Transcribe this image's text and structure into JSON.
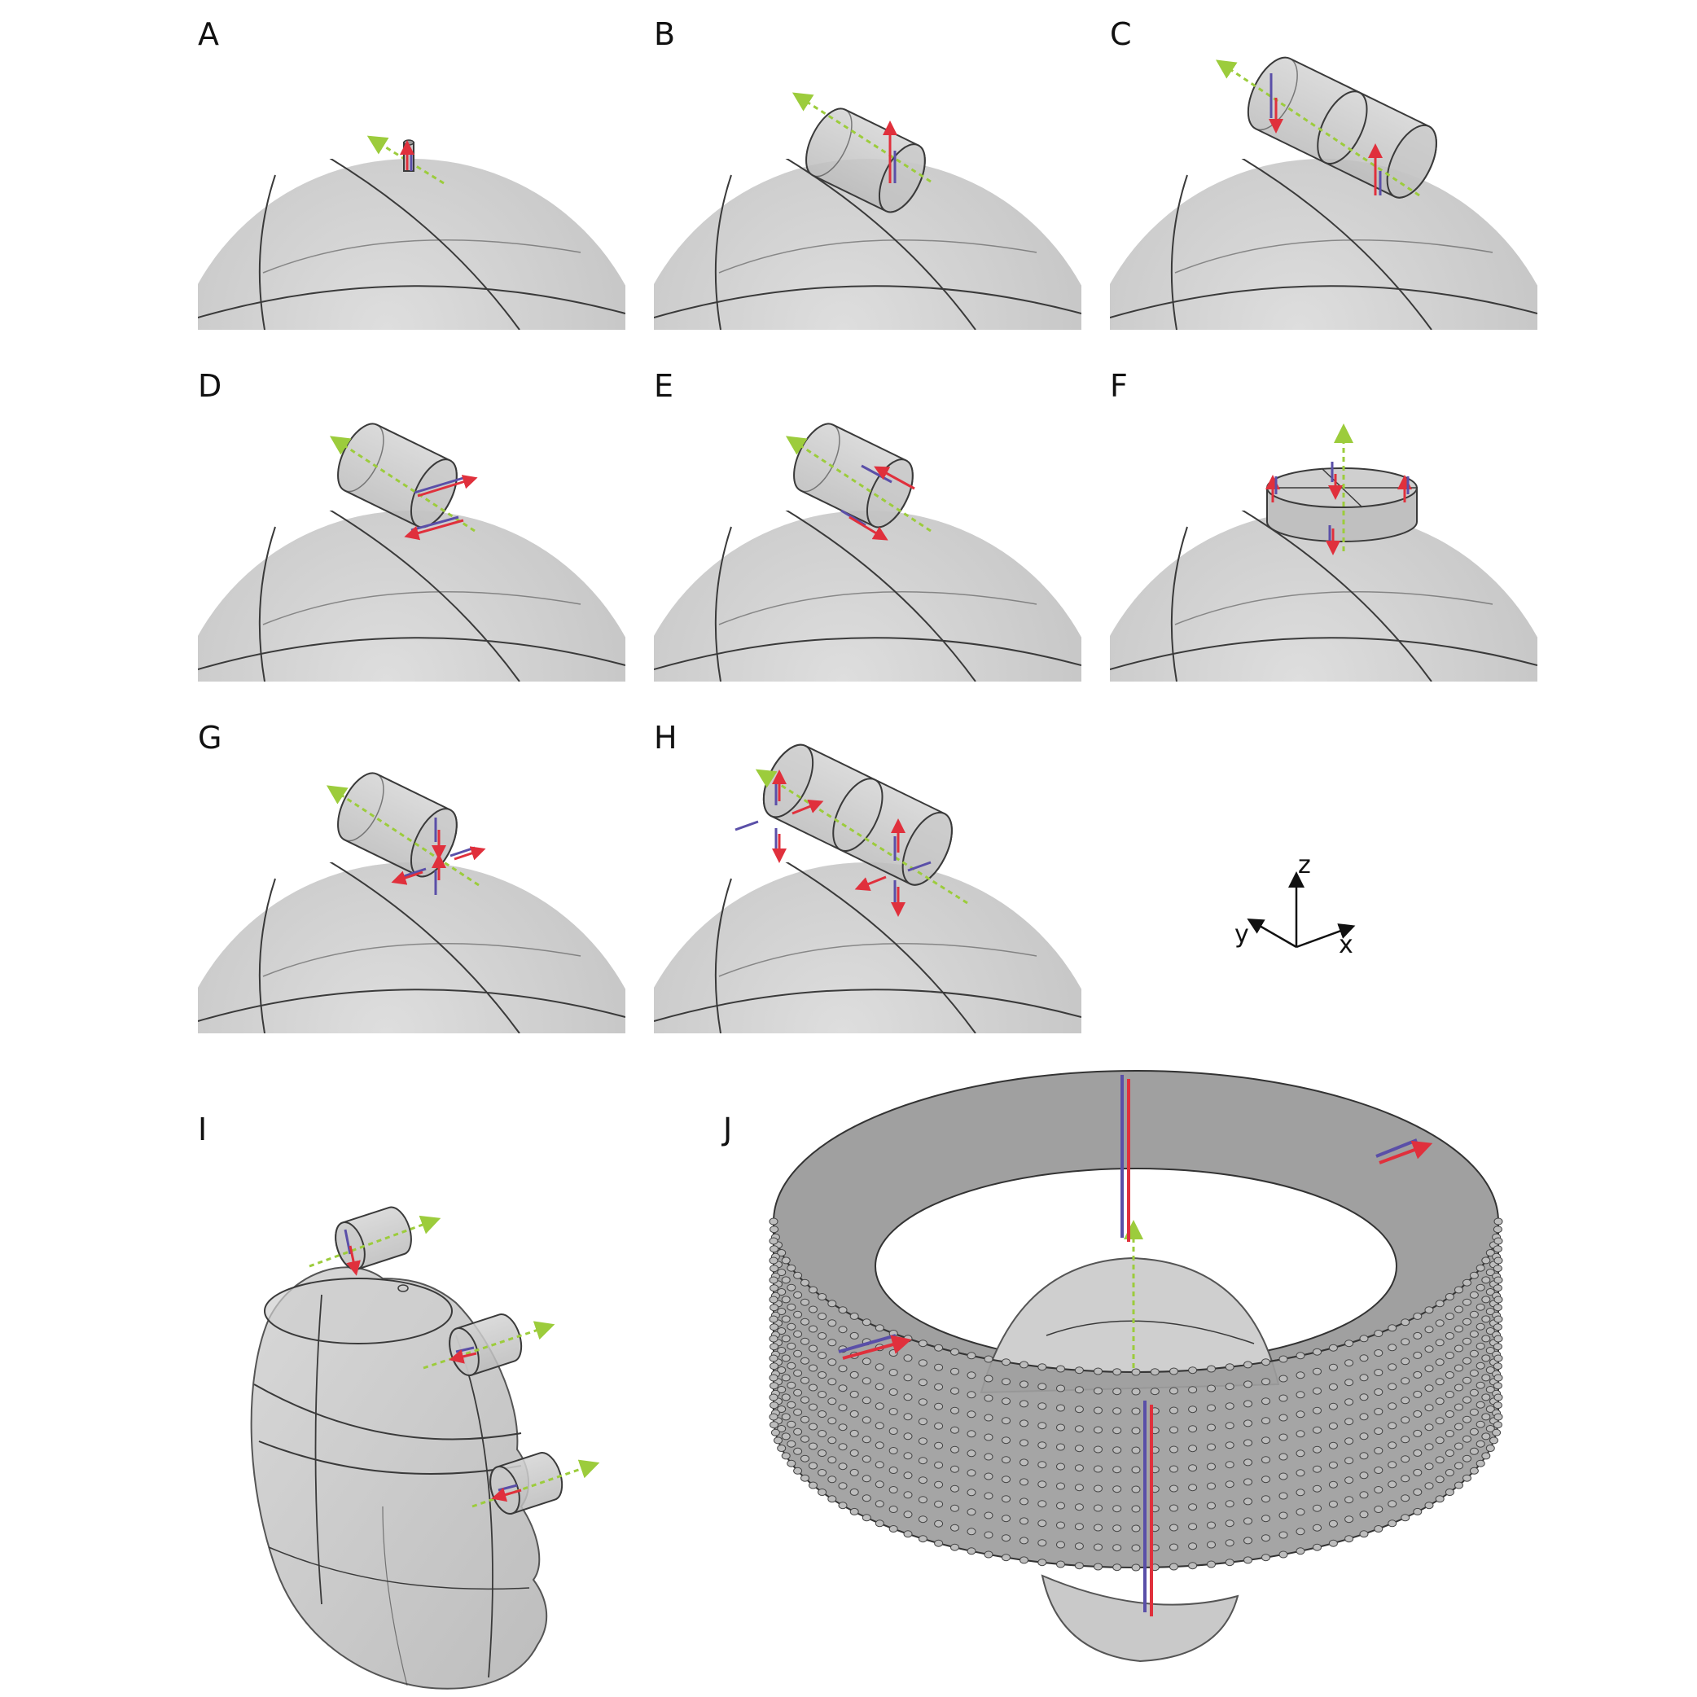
{
  "panels": [
    {
      "id": "A",
      "label": "A",
      "magnet": "small-rod"
    },
    {
      "id": "B",
      "label": "B",
      "magnet": "cylinder-transverse"
    },
    {
      "id": "C",
      "label": "C",
      "magnet": "double-cylinder-transverse"
    },
    {
      "id": "D",
      "label": "D",
      "magnet": "cylinder-split-opposed"
    },
    {
      "id": "E",
      "label": "E",
      "magnet": "cylinder-split-diagonal"
    },
    {
      "id": "F",
      "label": "F",
      "magnet": "disk-quadrant"
    },
    {
      "id": "G",
      "label": "G",
      "magnet": "cylinder-quadrupole"
    },
    {
      "id": "H",
      "label": "H",
      "magnet": "double-cylinder-quadrupole"
    },
    {
      "id": "I",
      "label": "I",
      "magnet": "head-with-three-cylinders"
    },
    {
      "id": "J",
      "label": "J",
      "magnet": "ring-array-around-head"
    }
  ],
  "axes": {
    "z": "z",
    "y": "y",
    "x": "x"
  },
  "colors": {
    "sphere_fill": "#c9c9c9",
    "outline": "#3a3a3a",
    "field_axis": "#9ccc3c",
    "north": "#e0303c",
    "south": "#5a4fa8"
  }
}
